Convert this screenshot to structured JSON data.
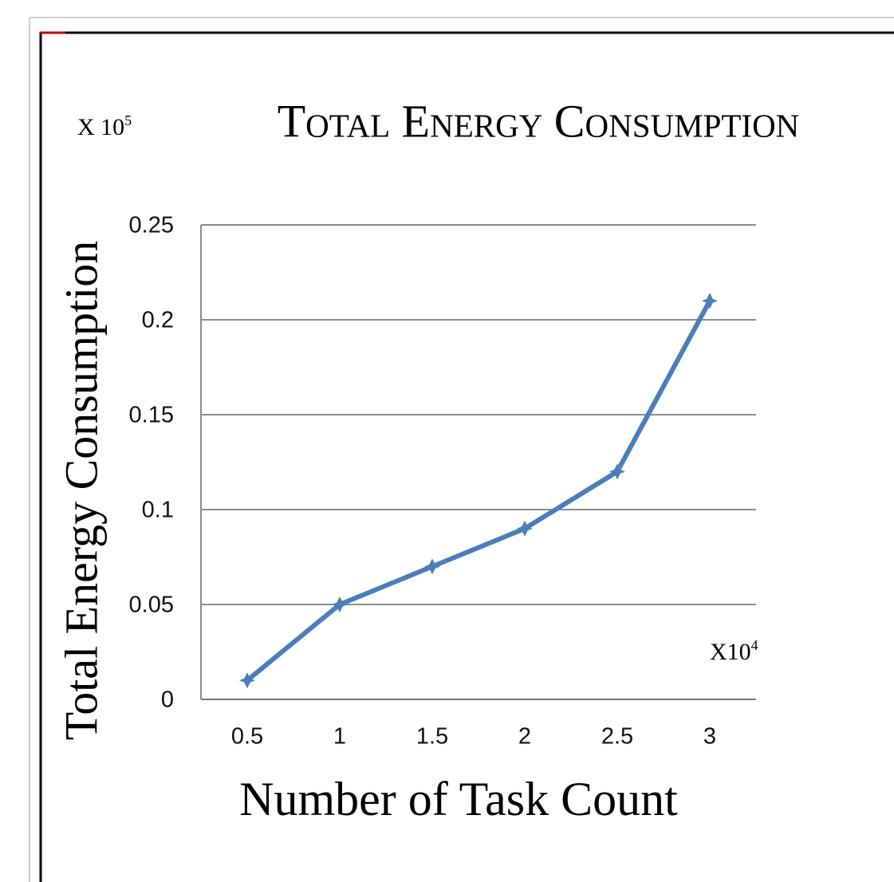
{
  "chart_data": {
    "type": "line",
    "title": "Total Energy Consumption",
    "y_label": "Total Energy Consumption",
    "x_label": "Number of Task Count",
    "y_multiplier": {
      "base": "X 10",
      "exponent": "5"
    },
    "x_multiplier": {
      "base": "X10",
      "exponent": "4"
    },
    "categories": [
      "0.5",
      "1",
      "1.5",
      "2",
      "2.5",
      "3"
    ],
    "values": [
      0.01,
      0.05,
      0.07,
      0.09,
      0.12,
      0.21
    ],
    "color": "#4a7ebb",
    "ylim": [
      0,
      0.25
    ],
    "yticks": [
      0,
      0.05,
      0.1,
      0.15,
      0.2,
      0.25
    ],
    "grid": true
  }
}
